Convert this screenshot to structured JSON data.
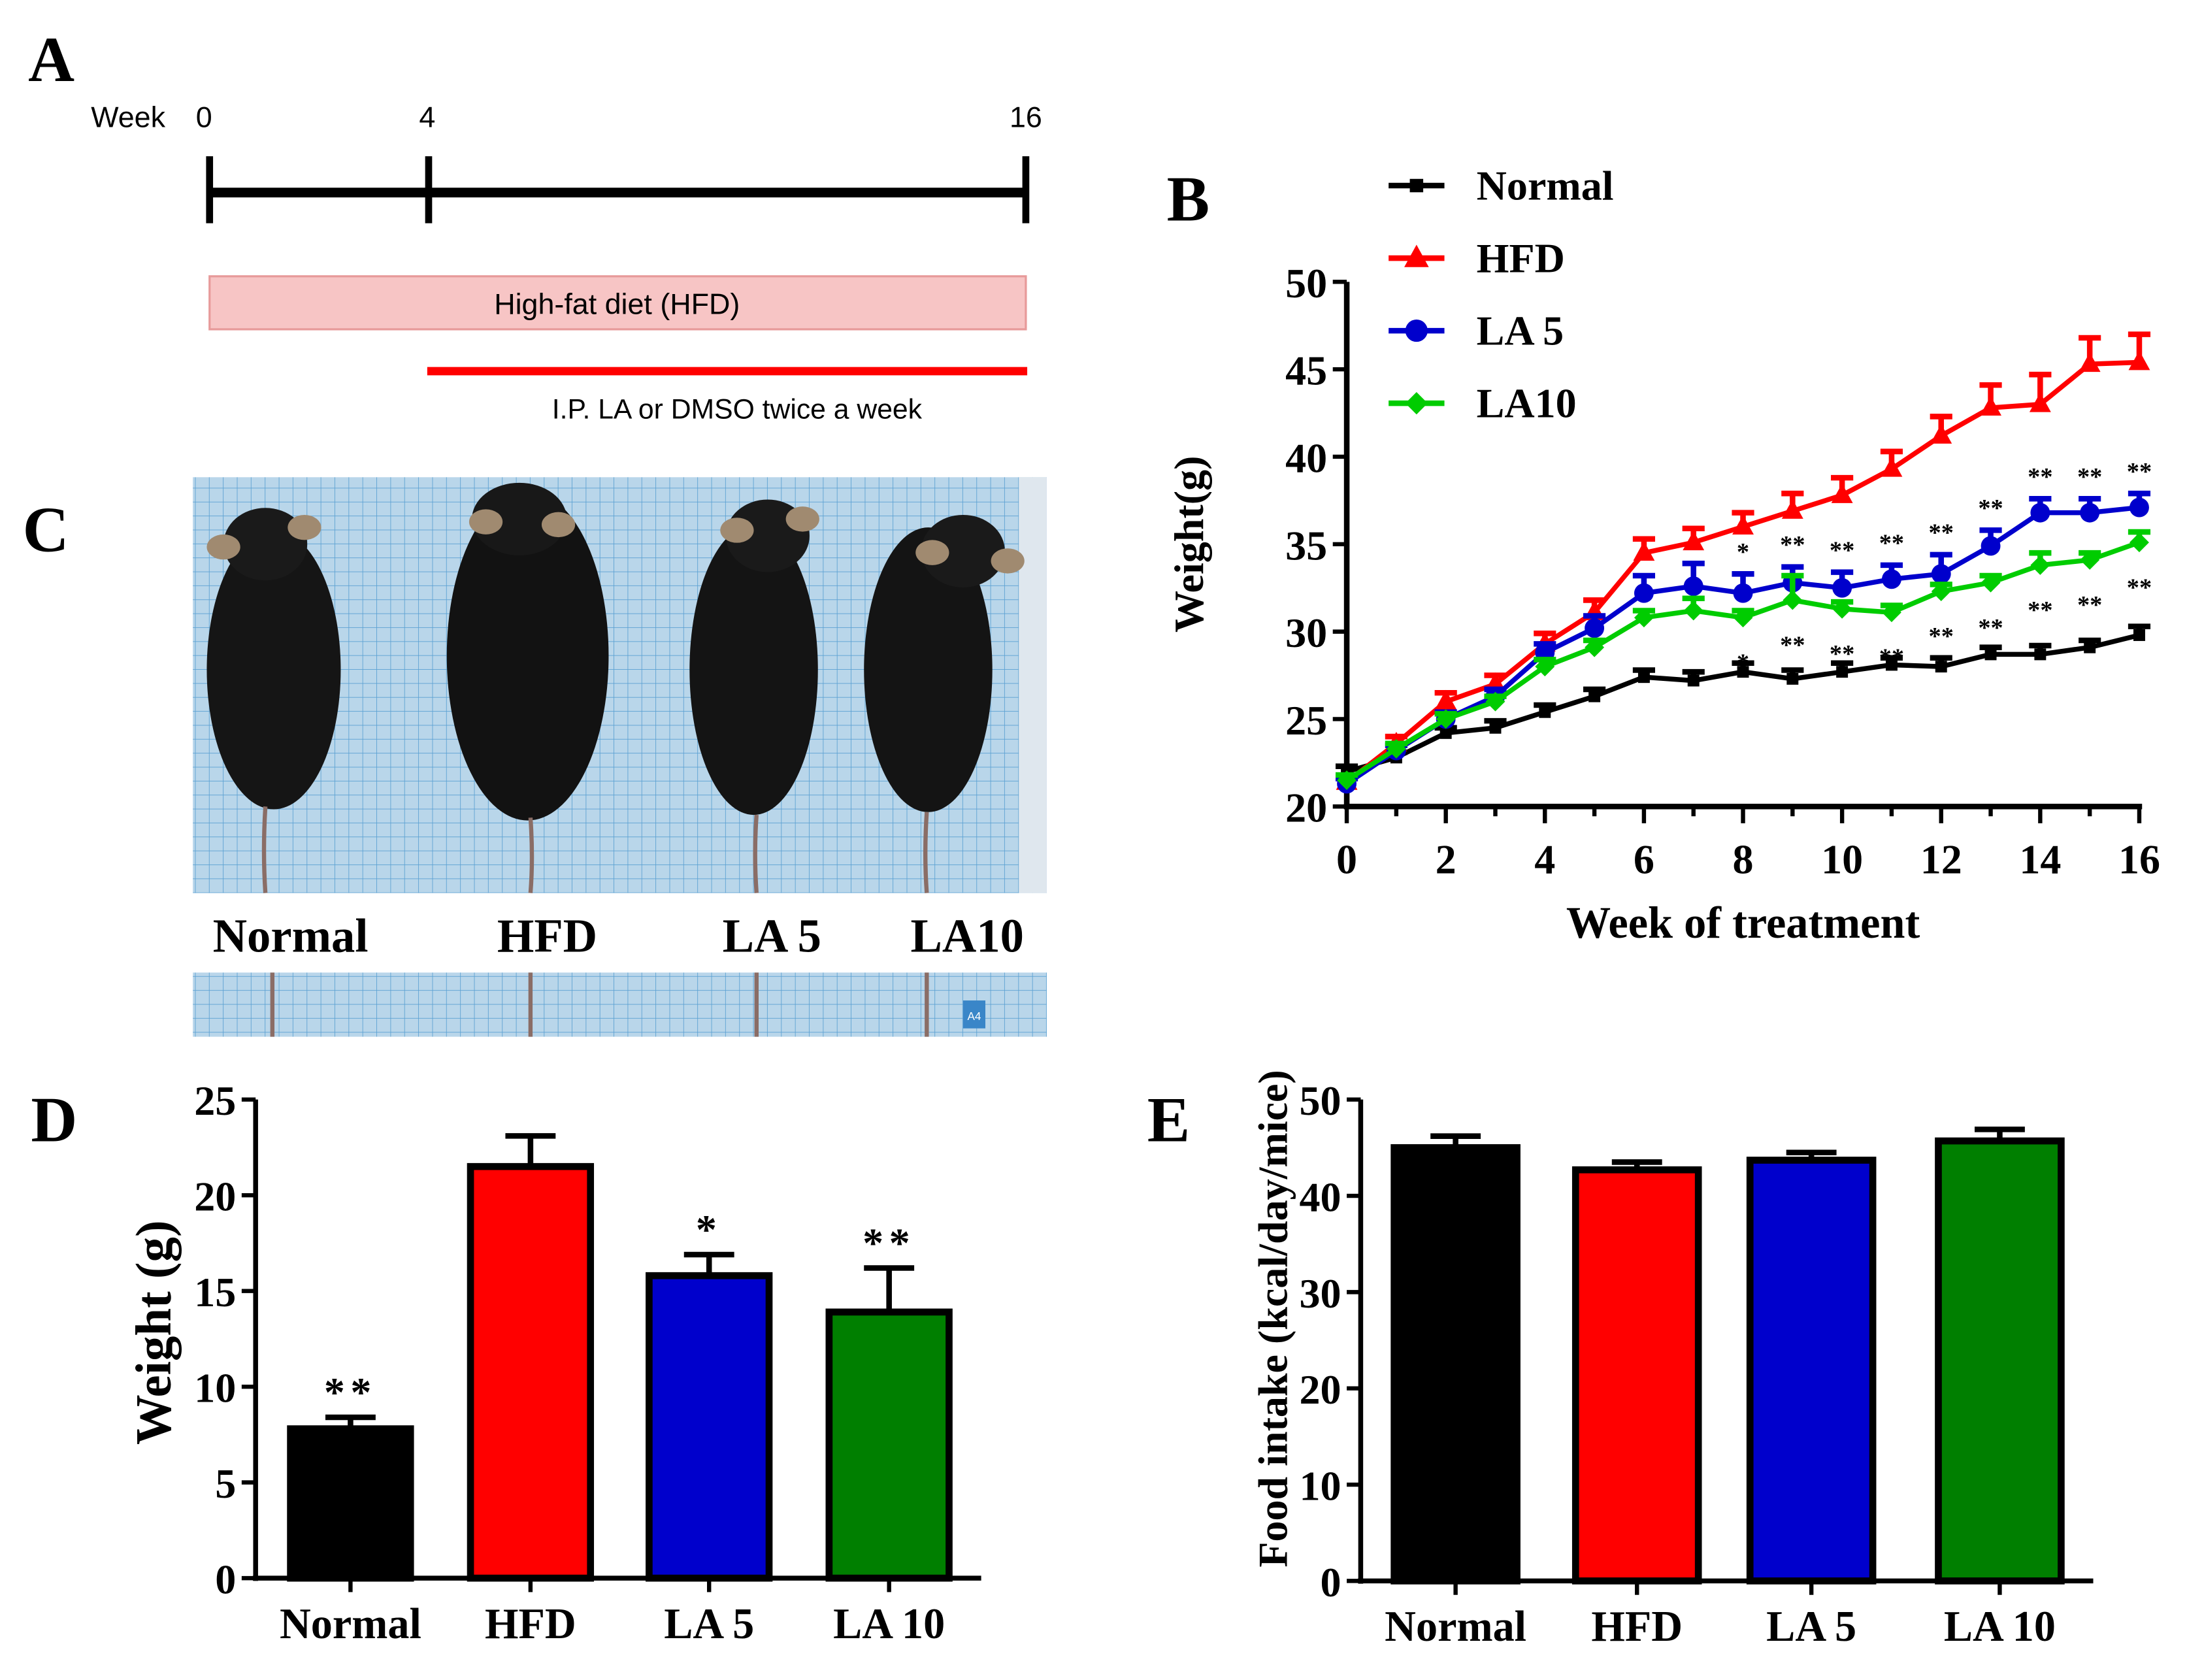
{
  "panel_labels": {
    "a": "A",
    "b": "B",
    "c": "C",
    "d": "D",
    "e": "E"
  },
  "timeline": {
    "week_label": "Week",
    "ticks": [
      "0",
      "4",
      "16"
    ],
    "hfd_label": "High-fat diet (HFD)",
    "treatment_label": "I.P. LA or DMSO twice a week",
    "colors": {
      "hfd_bar": "#f7c5c5",
      "treatment_line": "#ff0000"
    }
  },
  "photo": {
    "labels": [
      "Normal",
      "HFD",
      "LA 5",
      "LA10"
    ],
    "sticker": "A4"
  },
  "chart_data": [
    {
      "type": "line",
      "title": "",
      "xlabel": "Week of treatment",
      "ylabel": "Weight(g)",
      "xlim": [
        0,
        16
      ],
      "ylim": [
        20,
        50
      ],
      "xticks": [
        "0",
        "2",
        "4",
        "6",
        "8",
        "10",
        "12",
        "14",
        "16"
      ],
      "yticks": [
        "20",
        "25",
        "30",
        "35",
        "40",
        "45",
        "50"
      ],
      "legend_position": "top-left",
      "x": [
        0,
        1,
        2,
        3,
        4,
        5,
        6,
        7,
        8,
        9,
        10,
        11,
        12,
        13,
        14,
        15,
        16
      ],
      "series": [
        {
          "name": "Normal",
          "color": "#000000",
          "marker": "square",
          "values": [
            22.0,
            22.8,
            24.2,
            24.5,
            25.4,
            26.3,
            27.4,
            27.2,
            27.7,
            27.3,
            27.7,
            28.1,
            28.0,
            28.7,
            28.7,
            29.1,
            29.8
          ],
          "errors": [
            0.3,
            0.3,
            0.3,
            0.4,
            0.4,
            0.4,
            0.4,
            0.5,
            0.5,
            0.5,
            0.5,
            0.4,
            0.5,
            0.4,
            0.5,
            0.4,
            0.5
          ]
        },
        {
          "name": "HFD",
          "color": "#ff0000",
          "marker": "triangle",
          "values": [
            21.4,
            23.6,
            26.0,
            27.0,
            29.3,
            31.1,
            34.5,
            35.1,
            36.0,
            36.9,
            37.8,
            39.3,
            41.2,
            42.8,
            43.0,
            45.3,
            45.4
          ],
          "errors": [
            0.3,
            0.4,
            0.5,
            0.5,
            0.6,
            0.7,
            0.8,
            0.8,
            0.8,
            1.0,
            1.0,
            1.0,
            1.1,
            1.3,
            1.7,
            1.5,
            1.6
          ]
        },
        {
          "name": "LA 5",
          "color": "#0000cc",
          "marker": "circle",
          "values": [
            21.3,
            23.2,
            25.0,
            26.3,
            28.8,
            30.2,
            32.2,
            32.6,
            32.2,
            32.8,
            32.5,
            33.0,
            33.3,
            34.9,
            36.8,
            36.8,
            37.1
          ],
          "errors": [
            0.3,
            0.3,
            0.4,
            0.4,
            0.5,
            0.7,
            1.0,
            1.3,
            1.1,
            0.9,
            0.9,
            0.8,
            1.1,
            0.9,
            0.8,
            0.8,
            0.8
          ]
        },
        {
          "name": "LA10",
          "color": "#00cc00",
          "marker": "diamond",
          "values": [
            21.5,
            23.3,
            25.0,
            26.0,
            28.0,
            29.1,
            30.8,
            31.2,
            30.8,
            31.8,
            31.3,
            31.1,
            32.3,
            32.8,
            33.8,
            34.1,
            35.1
          ],
          "errors": [
            0.3,
            0.3,
            0.3,
            0.3,
            0.4,
            0.4,
            0.4,
            0.7,
            0.4,
            1.4,
            0.4,
            0.4,
            0.4,
            0.4,
            0.7,
            0.4,
            0.6
          ]
        }
      ],
      "annotations": [
        {
          "series": "LA 5",
          "x": [
            8,
            9,
            10,
            11,
            12,
            13,
            14,
            15,
            16
          ],
          "text": [
            "*",
            "**",
            "**",
            "**",
            "**",
            "**",
            "**",
            "**",
            "**"
          ],
          "place": "above"
        },
        {
          "series": "LA10",
          "x": [
            8,
            9,
            10,
            11,
            12,
            13,
            14,
            15,
            16
          ],
          "text": [
            "*",
            "**",
            "**",
            "**",
            "**",
            "**",
            "**",
            "**",
            "**"
          ],
          "place": "below"
        }
      ]
    },
    {
      "type": "bar",
      "title": "",
      "xlabel": "",
      "ylabel": "Weight (g)",
      "categories": [
        "Normal",
        "HFD",
        "LA 5",
        "LA 10"
      ],
      "values": [
        7.8,
        21.5,
        15.8,
        13.9
      ],
      "errors": [
        0.6,
        1.6,
        1.1,
        2.3
      ],
      "significance": [
        "**",
        "",
        "*",
        "**"
      ],
      "colors": [
        "#000000",
        "#ff0000",
        "#0000cc",
        "#007f00"
      ],
      "ylim": [
        0,
        25
      ],
      "yticks": [
        "0",
        "5",
        "10",
        "15",
        "20",
        "25"
      ]
    },
    {
      "type": "bar",
      "title": "",
      "xlabel": "",
      "ylabel": "Food intake (kcal/day/mice)",
      "categories": [
        "Normal",
        "HFD",
        "LA 5",
        "LA 10"
      ],
      "values": [
        45.0,
        42.7,
        43.7,
        45.7
      ],
      "errors": [
        1.2,
        0.8,
        0.8,
        1.2
      ],
      "significance": [
        "",
        "",
        "",
        ""
      ],
      "colors": [
        "#000000",
        "#ff0000",
        "#0000cc",
        "#007f00"
      ],
      "ylim": [
        0,
        50
      ],
      "yticks": [
        "0",
        "10",
        "20",
        "30",
        "40",
        "50"
      ]
    }
  ]
}
